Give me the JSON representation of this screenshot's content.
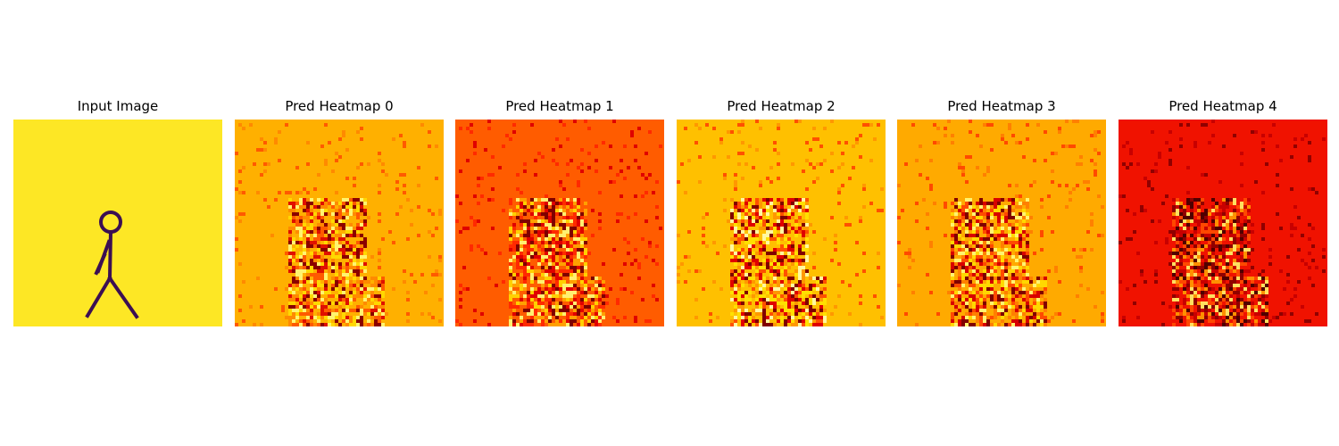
{
  "figure": {
    "background": "#ffffff",
    "panels": [
      {
        "title": "Input Image",
        "kind": "input",
        "background_color": "#fde725",
        "figure_color": "#3b0f52"
      },
      {
        "title": "Pred Heatmap 0",
        "kind": "heatmap",
        "base_color": "#ffb000",
        "noise_colors": [
          "#ff8a00",
          "#ff5a00",
          "#e01000",
          "#ffd800",
          "#fff470",
          "#8a0000"
        ]
      },
      {
        "title": "Pred Heatmap 1",
        "kind": "heatmap",
        "base_color": "#ff5c00",
        "noise_colors": [
          "#ff2a00",
          "#e00000",
          "#ffa000",
          "#ffd000",
          "#fff070",
          "#800000"
        ]
      },
      {
        "title": "Pred Heatmap 2",
        "kind": "heatmap",
        "base_color": "#ffc000",
        "noise_colors": [
          "#ff9800",
          "#ff5000",
          "#e00000",
          "#ffe000",
          "#fff8a0",
          "#800000"
        ]
      },
      {
        "title": "Pred Heatmap 3",
        "kind": "heatmap",
        "base_color": "#ffaa00",
        "noise_colors": [
          "#ff8000",
          "#ff4a00",
          "#d80000",
          "#ffd800",
          "#fff470",
          "#800000"
        ]
      },
      {
        "title": "Pred Heatmap 4",
        "kind": "heatmap",
        "base_color": "#f01200",
        "noise_colors": [
          "#c80000",
          "#900000",
          "#ff4800",
          "#ff9000",
          "#ffe060",
          "#500000"
        ]
      }
    ]
  },
  "chart_data": {
    "type": "heatmap",
    "panel_titles": [
      "Input Image",
      "Pred Heatmap 0",
      "Pred Heatmap 1",
      "Pred Heatmap 2",
      "Pred Heatmap 3",
      "Pred Heatmap 4"
    ],
    "grid": false,
    "axes_visible": false
  }
}
